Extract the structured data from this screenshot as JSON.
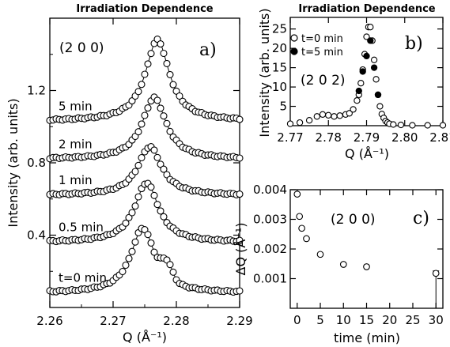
{
  "chart_data": [
    {
      "panel": "a)",
      "type": "scatter",
      "title": "Irradiation Dependence",
      "annotation": "(2 0 0)",
      "xlabel": "Q (Å⁻¹)",
      "ylabel": "Intensity (arb. units)",
      "xlim": [
        2.26,
        2.29
      ],
      "ylim": [
        0,
        1.6
      ],
      "xticks": [
        "2.26",
        "2.27",
        "2.28",
        "2.29"
      ],
      "yticks": [
        "0.4",
        "0.8",
        "1.2"
      ],
      "series": [
        {
          "label": "t=0 min",
          "baseline": 0.08,
          "center": 2.2747,
          "height": 0.36,
          "shoulder": {
            "center": 2.2785,
            "height": 0.09
          }
        },
        {
          "label": "0.5 min",
          "baseline": 0.36,
          "center": 2.2753,
          "height": 0.33
        },
        {
          "label": "1 min",
          "baseline": 0.62,
          "center": 2.2758,
          "height": 0.27
        },
        {
          "label": "2 min",
          "baseline": 0.82,
          "center": 2.2765,
          "height": 0.34
        },
        {
          "label": "5 min",
          "baseline": 1.03,
          "center": 2.277,
          "height": 0.45
        }
      ]
    },
    {
      "panel": "b)",
      "type": "scatter",
      "title": "Irradiation Dependence",
      "annotation": "(2 0 2)",
      "xlabel": "Q (Å⁻¹)",
      "ylabel": "Intensity (arb. units)",
      "xlim": [
        2.77,
        2.81
      ],
      "ylim": [
        0,
        28
      ],
      "xticks": [
        "2.77",
        "2.78",
        "2.79",
        "2.80",
        "2.81"
      ],
      "yticks": [
        "5",
        "10",
        "15",
        "20",
        "25"
      ],
      "series": [
        {
          "name": "t=0 min",
          "marker": "open",
          "x": [
            2.77,
            2.7725,
            2.775,
            2.777,
            2.7785,
            2.78,
            2.7815,
            2.783,
            2.7845,
            2.7855,
            2.7865,
            2.7875,
            2.788,
            2.7885,
            2.789,
            2.7895,
            2.79,
            2.7905,
            2.791,
            2.7915,
            2.792,
            2.7925,
            2.793,
            2.7935,
            2.794,
            2.7945,
            2.795,
            2.7955,
            2.796,
            2.797,
            2.799,
            2.802,
            2.806,
            2.81
          ],
          "y": [
            0.5,
            0.8,
            1.4,
            2.4,
            2.9,
            2.7,
            2.4,
            2.6,
            2.9,
            3.2,
            4.2,
            6.5,
            8.0,
            11.0,
            14.5,
            18.5,
            23.0,
            25.5,
            25.5,
            22.0,
            17.0,
            12.0,
            8.0,
            5.0,
            3.0,
            2.0,
            1.2,
            0.8,
            0.5,
            0.3,
            0.2,
            0.1,
            0.1,
            0.1
          ]
        },
        {
          "name": "t=5 min",
          "marker": "filled",
          "x": [
            2.788,
            2.789,
            2.79,
            2.791,
            2.792,
            2.793
          ],
          "y": [
            9.0,
            14.0,
            18.0,
            22.0,
            15.0,
            8.0
          ]
        }
      ]
    },
    {
      "panel": "c)",
      "type": "scatter",
      "annotation": "(2 0 0)",
      "xlabel": "time (min)",
      "ylabel": "ΔQ (Å⁻¹)",
      "xlim": [
        -1.5,
        31.5
      ],
      "ylim": [
        0,
        0.004
      ],
      "xticks": [
        "0",
        "5",
        "10",
        "15",
        "20",
        "25",
        "30"
      ],
      "yticks": [
        "0.001",
        "0.002",
        "0.003",
        "0.004"
      ],
      "x": [
        0,
        0.5,
        1,
        2,
        5,
        10,
        15,
        30
      ],
      "y": [
        0.00385,
        0.0031,
        0.0027,
        0.00235,
        0.00182,
        0.00148,
        0.0014,
        0.00118
      ]
    }
  ]
}
